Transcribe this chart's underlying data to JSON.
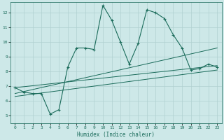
{
  "xlabel": "Humidex (Indice chaleur)",
  "bg_color": "#cde8e8",
  "line_color": "#1a6b5a",
  "grid_color": "#b0d0d0",
  "xlim": [
    -0.5,
    23.5
  ],
  "ylim": [
    4.5,
    12.7
  ],
  "yticks": [
    5,
    6,
    7,
    8,
    9,
    10,
    11,
    12
  ],
  "xticks": [
    0,
    1,
    2,
    3,
    4,
    5,
    6,
    7,
    8,
    9,
    10,
    11,
    12,
    13,
    14,
    15,
    16,
    17,
    18,
    19,
    20,
    21,
    22,
    23
  ],
  "series1_x": [
    0,
    1,
    2,
    3,
    4,
    5,
    6,
    7,
    8,
    9,
    10,
    11,
    12,
    13,
    14,
    15,
    16,
    17,
    18,
    19,
    20,
    21,
    22,
    23
  ],
  "series1_y": [
    6.9,
    6.6,
    6.5,
    6.5,
    5.1,
    5.4,
    8.3,
    9.6,
    9.6,
    9.5,
    12.5,
    11.5,
    10.0,
    8.5,
    9.9,
    12.2,
    12.0,
    11.6,
    10.5,
    9.6,
    8.1,
    8.2,
    8.5,
    8.3
  ],
  "series2_x": [
    0,
    23
  ],
  "series2_y": [
    6.5,
    9.6
  ],
  "series3_x": [
    0,
    23
  ],
  "series3_y": [
    6.9,
    8.4
  ],
  "series4_x": [
    0,
    23
  ],
  "series4_y": [
    6.3,
    8.1
  ]
}
